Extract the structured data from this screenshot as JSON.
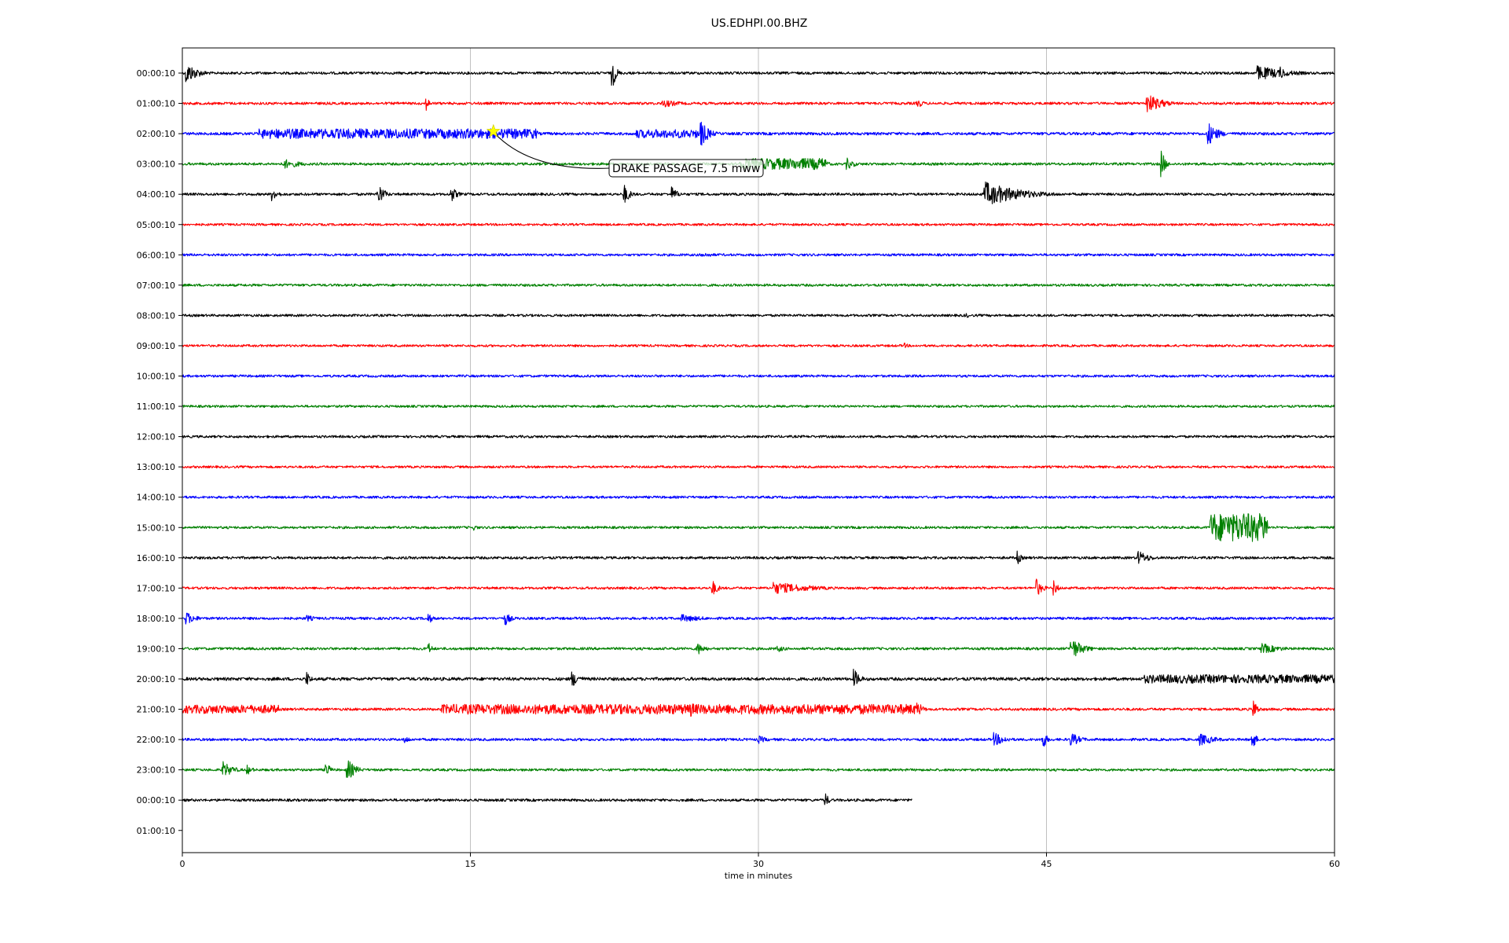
{
  "chart_data": {
    "type": "line",
    "title": "US.EDHPI.00.BHZ",
    "xlabel": "time in minutes",
    "ylabel": "",
    "xlim": [
      0,
      60
    ],
    "xticks": [
      0,
      15,
      30,
      45,
      60
    ],
    "grid": {
      "vertical": true,
      "horizontal": false
    },
    "trace_colors": [
      "#000000",
      "#ff0000",
      "#0000ff",
      "#008000"
    ],
    "row_labels": [
      "00:00:10",
      "01:00:10",
      "02:00:10",
      "03:00:10",
      "04:00:10",
      "05:00:10",
      "06:00:10",
      "07:00:10",
      "08:00:10",
      "09:00:10",
      "10:00:10",
      "11:00:10",
      "12:00:10",
      "13:00:10",
      "14:00:10",
      "15:00:10",
      "16:00:10",
      "17:00:10",
      "18:00:10",
      "19:00:10",
      "20:00:10",
      "21:00:10",
      "22:00:10",
      "23:00:10",
      "00:00:10",
      "01:00:10"
    ],
    "rows": [
      {
        "label": "00:00:10",
        "end_min": 60,
        "noise": 0.18,
        "bursts": [
          {
            "t": 0.2,
            "amp": 1.6,
            "dur": 0.6
          },
          {
            "t": 22.4,
            "amp": 2.2,
            "dur": 0.2
          },
          {
            "t": 56,
            "amp": 1.1,
            "dur": 1.5
          },
          {
            "t": 57.2,
            "amp": 1.0,
            "dur": 0.3
          }
        ]
      },
      {
        "label": "01:00:10",
        "end_min": 60,
        "noise": 0.18,
        "bursts": [
          {
            "t": 12.7,
            "amp": 1.0,
            "dur": 0.2
          },
          {
            "t": 25,
            "amp": 0.6,
            "dur": 1.0
          },
          {
            "t": 38.3,
            "amp": 0.7,
            "dur": 0.3
          },
          {
            "t": 50.2,
            "amp": 1.5,
            "dur": 0.8
          }
        ]
      },
      {
        "label": "02:00:10",
        "end_min": 60,
        "noise": 0.2,
        "bursts": [
          {
            "t": 4,
            "amp": 0.7,
            "dur": 14.5
          },
          {
            "t": 23.6,
            "amp": 0.6,
            "dur": 3.3
          },
          {
            "t": 27,
            "amp": 2.0,
            "dur": 0.4
          },
          {
            "t": 53.4,
            "amp": 1.8,
            "dur": 0.5
          }
        ]
      },
      {
        "label": "03:00:10",
        "end_min": 60,
        "noise": 0.18,
        "bursts": [
          {
            "t": 5.3,
            "amp": 0.7,
            "dur": 1.0
          },
          {
            "t": 29,
            "amp": 0.8,
            "dur": 4.5
          },
          {
            "t": 33,
            "amp": 1.0,
            "dur": 0.5
          },
          {
            "t": 34.6,
            "amp": 0.9,
            "dur": 0.4
          },
          {
            "t": 51,
            "amp": 2.0,
            "dur": 0.2
          }
        ]
      },
      {
        "label": "04:00:10",
        "end_min": 60,
        "noise": 0.18,
        "bursts": [
          {
            "t": 4.7,
            "amp": 1.0,
            "dur": 0.3
          },
          {
            "t": 10.2,
            "amp": 1.7,
            "dur": 0.3
          },
          {
            "t": 14,
            "amp": 1.2,
            "dur": 0.3
          },
          {
            "t": 23,
            "amp": 1.5,
            "dur": 0.3
          },
          {
            "t": 25.5,
            "amp": 1.1,
            "dur": 0.3
          },
          {
            "t": 41.8,
            "amp": 1.8,
            "dur": 1.8
          }
        ]
      },
      {
        "label": "05:00:10",
        "end_min": 60,
        "noise": 0.16,
        "bursts": []
      },
      {
        "label": "06:00:10",
        "end_min": 60,
        "noise": 0.17,
        "bursts": [
          {
            "t": 27,
            "amp": 0.4,
            "dur": 1.0
          }
        ]
      },
      {
        "label": "07:00:10",
        "end_min": 60,
        "noise": 0.17,
        "bursts": []
      },
      {
        "label": "08:00:10",
        "end_min": 60,
        "noise": 0.17,
        "bursts": [
          {
            "t": 40.8,
            "amp": 0.4,
            "dur": 0.3
          }
        ]
      },
      {
        "label": "09:00:10",
        "end_min": 60,
        "noise": 0.16,
        "bursts": [
          {
            "t": 37.6,
            "amp": 0.4,
            "dur": 0.3
          }
        ]
      },
      {
        "label": "10:00:10",
        "end_min": 60,
        "noise": 0.17,
        "bursts": []
      },
      {
        "label": "11:00:10",
        "end_min": 60,
        "noise": 0.16,
        "bursts": []
      },
      {
        "label": "12:00:10",
        "end_min": 60,
        "noise": 0.17,
        "bursts": []
      },
      {
        "label": "13:00:10",
        "end_min": 60,
        "noise": 0.16,
        "bursts": []
      },
      {
        "label": "14:00:10",
        "end_min": 60,
        "noise": 0.17,
        "bursts": []
      },
      {
        "label": "15:00:10",
        "end_min": 60,
        "noise": 0.17,
        "bursts": [
          {
            "t": 15.2,
            "amp": 0.4,
            "dur": 0.3
          },
          {
            "t": 53.5,
            "amp": 2.0,
            "dur": 3.0
          }
        ]
      },
      {
        "label": "16:00:10",
        "end_min": 60,
        "noise": 0.18,
        "bursts": [
          {
            "t": 43.5,
            "amp": 1.0,
            "dur": 0.2
          },
          {
            "t": 49.8,
            "amp": 1.0,
            "dur": 0.6
          }
        ]
      },
      {
        "label": "17:00:10",
        "end_min": 60,
        "noise": 0.17,
        "bursts": [
          {
            "t": 27.6,
            "amp": 1.2,
            "dur": 0.3
          },
          {
            "t": 30.8,
            "amp": 0.9,
            "dur": 2.0
          },
          {
            "t": 44.5,
            "amp": 1.3,
            "dur": 0.3
          },
          {
            "t": 45.4,
            "amp": 1.1,
            "dur": 0.2
          }
        ]
      },
      {
        "label": "18:00:10",
        "end_min": 60,
        "noise": 0.18,
        "bursts": [
          {
            "t": 0.2,
            "amp": 1.0,
            "dur": 0.5
          },
          {
            "t": 6.5,
            "amp": 0.5,
            "dur": 0.5
          },
          {
            "t": 12.8,
            "amp": 1.0,
            "dur": 0.2
          },
          {
            "t": 16.8,
            "amp": 1.1,
            "dur": 0.3
          },
          {
            "t": 26,
            "amp": 0.6,
            "dur": 1.2
          }
        ]
      },
      {
        "label": "19:00:10",
        "end_min": 60,
        "noise": 0.18,
        "bursts": [
          {
            "t": 12.8,
            "amp": 1.0,
            "dur": 0.2
          },
          {
            "t": 26.8,
            "amp": 1.0,
            "dur": 0.4
          },
          {
            "t": 31,
            "amp": 0.5,
            "dur": 0.5
          },
          {
            "t": 46.3,
            "amp": 1.6,
            "dur": 0.6
          },
          {
            "t": 56.2,
            "amp": 0.8,
            "dur": 1.0
          }
        ]
      },
      {
        "label": "20:00:10",
        "end_min": 60,
        "noise": 0.22,
        "bursts": [
          {
            "t": 6.5,
            "amp": 1.1,
            "dur": 0.2
          },
          {
            "t": 20.3,
            "amp": 1.2,
            "dur": 0.4
          },
          {
            "t": 35,
            "amp": 1.4,
            "dur": 0.3
          },
          {
            "t": 50,
            "amp": 0.6,
            "dur": 10
          }
        ]
      },
      {
        "label": "21:00:10",
        "end_min": 60,
        "noise": 0.18,
        "bursts": [
          {
            "t": 0,
            "amp": 0.6,
            "dur": 5
          },
          {
            "t": 13.5,
            "amp": 0.7,
            "dur": 25
          },
          {
            "t": 26.5,
            "amp": 1.2,
            "dur": 0.3
          },
          {
            "t": 38.3,
            "amp": 1.0,
            "dur": 0.3
          },
          {
            "t": 55.8,
            "amp": 1.5,
            "dur": 0.2
          }
        ]
      },
      {
        "label": "22:00:10",
        "end_min": 60,
        "noise": 0.18,
        "bursts": [
          {
            "t": 11.6,
            "amp": 0.6,
            "dur": 0.3
          },
          {
            "t": 30,
            "amp": 0.6,
            "dur": 0.5
          },
          {
            "t": 42.3,
            "amp": 1.0,
            "dur": 0.6
          },
          {
            "t": 44.8,
            "amp": 1.6,
            "dur": 0.2
          },
          {
            "t": 46.3,
            "amp": 1.0,
            "dur": 0.5
          },
          {
            "t": 53,
            "amp": 0.9,
            "dur": 0.8
          },
          {
            "t": 55.7,
            "amp": 1.7,
            "dur": 0.2
          }
        ]
      },
      {
        "label": "23:00:10",
        "end_min": 60,
        "noise": 0.17,
        "bursts": [
          {
            "t": 2.1,
            "amp": 1.3,
            "dur": 0.5
          },
          {
            "t": 3.4,
            "amp": 0.7,
            "dur": 0.3
          },
          {
            "t": 7.5,
            "amp": 1.2,
            "dur": 0.2
          },
          {
            "t": 8.6,
            "amp": 1.6,
            "dur": 0.4
          }
        ]
      },
      {
        "label": "00:00:10",
        "end_min": 38,
        "noise": 0.18,
        "bursts": [
          {
            "t": 33.5,
            "amp": 1.0,
            "dur": 0.2
          }
        ]
      },
      {
        "label": "01:00:10",
        "end_min": 0,
        "noise": 0,
        "bursts": []
      }
    ],
    "annotations": [
      {
        "text": "DRAKE PASSAGE, 7.5 mww",
        "row_index": 2,
        "t": 16.2,
        "marker": "star",
        "marker_color": "#ffff00"
      }
    ]
  }
}
